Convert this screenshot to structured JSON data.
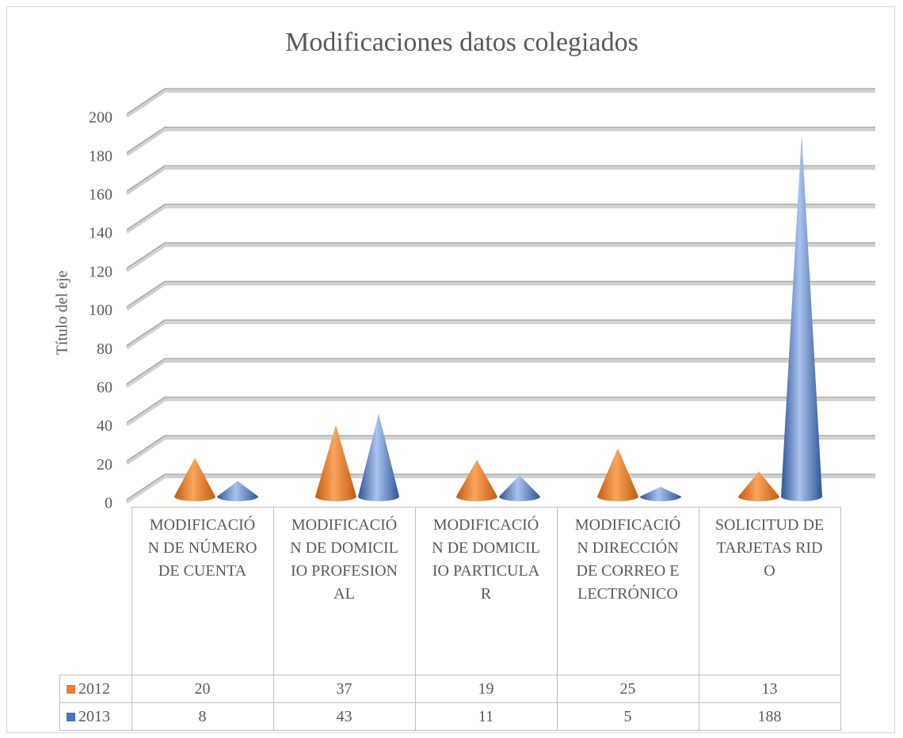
{
  "chart_data": {
    "type": "cone",
    "title": "Modificaciones datos colegiados",
    "y_axis_label": "Título del eje",
    "categories": [
      "MODIFICACIÓN DE NÚMERO DE CUENTA",
      "MODIFICACIÓN DE DOMICILIO PROFESIONAL",
      "MODIFICACIÓN DE DOMICILIO PARTICULAR",
      "MODIFICACIÓN DIRECCIÓN DE CORREO ELECTRÓNICO",
      "SOLICITUD DE TARJETAS RIDO"
    ],
    "series": [
      {
        "name": "2012",
        "color": "#ed7d31",
        "values": [
          20,
          37,
          19,
          25,
          13
        ]
      },
      {
        "name": "2013",
        "color": "#4472c4",
        "values": [
          8,
          43,
          11,
          5,
          188
        ]
      }
    ],
    "ylim": [
      0,
      200
    ],
    "yticks": [
      0,
      20,
      40,
      60,
      80,
      100,
      120,
      140,
      160,
      180,
      200
    ],
    "grid": true
  }
}
